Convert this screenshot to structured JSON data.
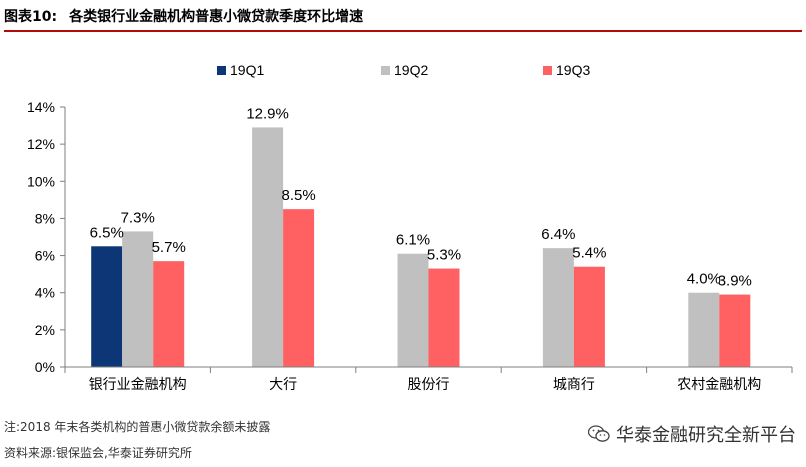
{
  "header": {
    "figure_label": "图表10:",
    "title": "各类银行业金融机构普惠小微贷款季度环比增速"
  },
  "chart_data": {
    "type": "bar",
    "categories": [
      "银行业金融机构",
      "大行",
      "股份行",
      "城商行",
      "农村金融机构"
    ],
    "series": [
      {
        "name": "19Q1",
        "color": "#0d3677",
        "values": [
          6.5,
          null,
          null,
          null,
          null
        ]
      },
      {
        "name": "19Q2",
        "color": "#c0c0c0",
        "values": [
          7.3,
          12.9,
          6.1,
          6.4,
          4.0
        ]
      },
      {
        "name": "19Q3",
        "color": "#ff6162",
        "values": [
          5.7,
          8.5,
          5.3,
          5.4,
          3.9
        ]
      }
    ],
    "yticks": [
      "0%",
      "2%",
      "4%",
      "6%",
      "8%",
      "10%",
      "12%",
      "14%"
    ],
    "ylim": [
      0,
      14
    ],
    "unit": "%",
    "legend_position": "top",
    "grid": false
  },
  "footer": {
    "note": "注:2018 年末各类机构的普惠小微贷款余额未披露",
    "source": "资料来源:银保监会,华泰证券研究所",
    "watermark": "华泰金融研究全新平台",
    "watermark_icon": "wechat-icon"
  }
}
